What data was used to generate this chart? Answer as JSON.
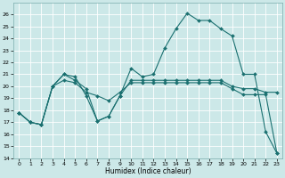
{
  "xlabel": "Humidex (Indice chaleur)",
  "bg_color": "#cce8e8",
  "line_color": "#1a7070",
  "grid_color": "#b8d8d8",
  "xlim": [
    -0.5,
    23.5
  ],
  "ylim": [
    14,
    27
  ],
  "yticks": [
    14,
    15,
    16,
    17,
    18,
    19,
    20,
    21,
    22,
    23,
    24,
    25,
    26
  ],
  "xticks": [
    0,
    1,
    2,
    3,
    4,
    5,
    6,
    7,
    8,
    9,
    10,
    11,
    12,
    13,
    14,
    15,
    16,
    17,
    18,
    19,
    20,
    21,
    22,
    23
  ],
  "line1_y": [
    17.8,
    17.0,
    16.8,
    20.0,
    21.0,
    20.8,
    19.2,
    17.1,
    17.5,
    19.2,
    21.5,
    20.8,
    21.0,
    23.2,
    24.8,
    26.1,
    25.5,
    25.5,
    24.8,
    24.2,
    21.0,
    21.0,
    16.2,
    14.4
  ],
  "line2_y": [
    17.8,
    17.0,
    16.8,
    20.0,
    21.0,
    20.5,
    19.8,
    17.1,
    17.5,
    19.2,
    20.5,
    20.5,
    20.5,
    20.5,
    20.5,
    20.5,
    20.5,
    20.5,
    20.5,
    20.0,
    19.8,
    19.8,
    19.5,
    19.5
  ],
  "line3_y": [
    17.8,
    17.0,
    16.8,
    20.0,
    20.5,
    20.3,
    19.5,
    19.2,
    18.8,
    19.5,
    20.3,
    20.3,
    20.3,
    20.3,
    20.3,
    20.3,
    20.3,
    20.3,
    20.3,
    19.8,
    19.3,
    19.3,
    19.3,
    14.4
  ]
}
